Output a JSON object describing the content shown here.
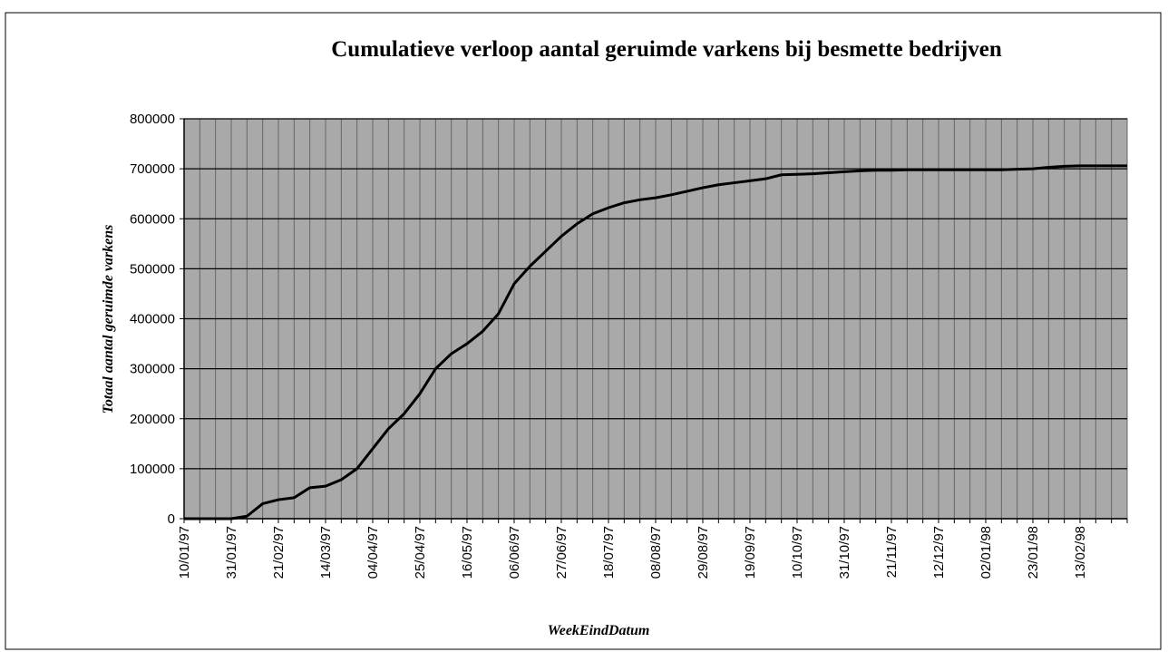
{
  "chart_data": {
    "type": "line",
    "title": "Cumulatieve verloop aantal geruimde varkens bij besmette bedrijven",
    "x_label": "WeekEindDatum",
    "y_label": "Totaal aantal geruimde varkens",
    "categories": [
      "10/01/97",
      null,
      null,
      "31/01/97",
      null,
      null,
      "21/02/97",
      null,
      null,
      "14/03/97",
      null,
      null,
      "04/04/97",
      null,
      null,
      "25/04/97",
      null,
      null,
      "16/05/97",
      null,
      null,
      "06/06/97",
      null,
      null,
      "27/06/97",
      null,
      null,
      "18/07/97",
      null,
      null,
      "08/08/97",
      null,
      null,
      "29/08/97",
      null,
      null,
      "19/09/97",
      null,
      null,
      "10/10/97",
      null,
      null,
      "31/10/97",
      null,
      null,
      "21/11/97",
      null,
      null,
      "12/12/97",
      null,
      null,
      "02/01/98",
      null,
      null,
      "23/01/98",
      null,
      null,
      "13/02/98",
      null,
      null,
      null
    ],
    "series": [
      {
        "name": "Totaal aantal geruimde varkens",
        "color": "#000000",
        "values": [
          0,
          0,
          0,
          0,
          5000,
          30000,
          38000,
          42000,
          62000,
          65000,
          78000,
          100000,
          140000,
          180000,
          210000,
          250000,
          300000,
          330000,
          350000,
          375000,
          410000,
          470000,
          505000,
          535000,
          565000,
          590000,
          610000,
          622000,
          632000,
          638000,
          642000,
          648000,
          655000,
          662000,
          668000,
          672000,
          676000,
          680000,
          688000,
          689000,
          690000,
          692000,
          694000,
          696000,
          697000,
          697000,
          698000,
          698000,
          698000,
          698000,
          698000,
          698000,
          698000,
          699000,
          700000,
          703000,
          705000,
          706000,
          706000,
          706000,
          706000
        ]
      }
    ],
    "ylim": [
      0,
      800000
    ],
    "yticks": [
      0,
      100000,
      200000,
      300000,
      400000,
      500000,
      600000,
      700000,
      800000
    ],
    "grid": true,
    "plot_background": "#a9a9a9"
  }
}
